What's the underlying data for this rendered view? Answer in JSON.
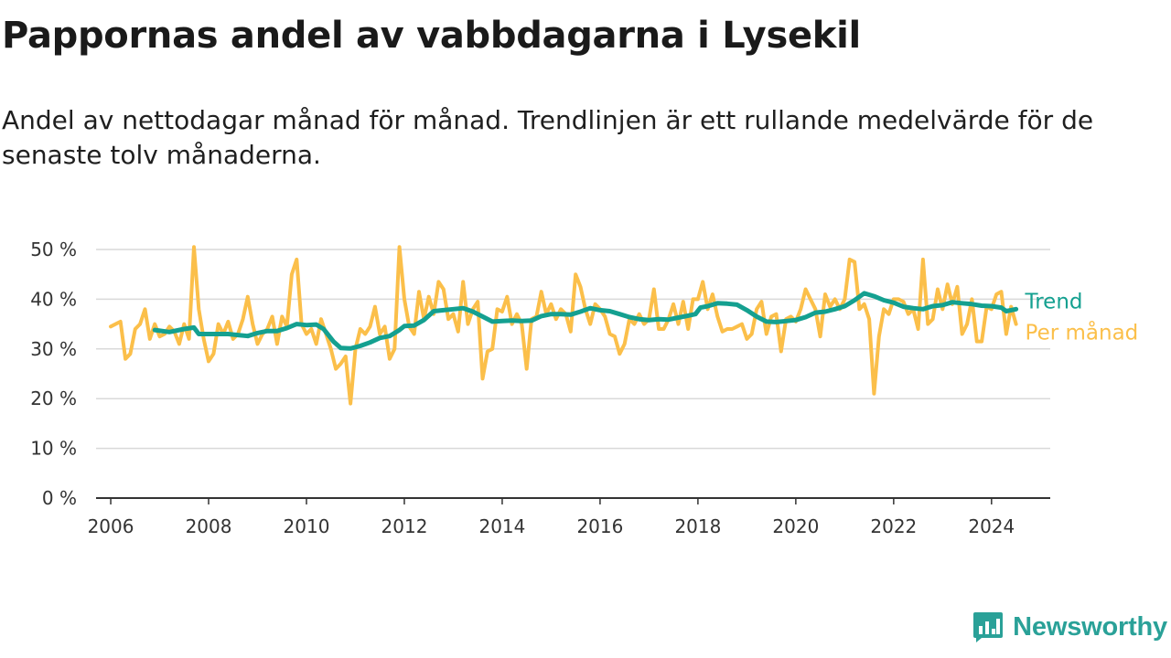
{
  "title": "Pappornas andel av vabbdagarna i Lysekil",
  "subtitle": "Andel av nettodagar månad för månad. Trendlinjen är ett rullande medelvärde för de senaste tolv månaderna.",
  "brand": {
    "name": "Newsworthy",
    "color": "#2aa198"
  },
  "chart_data": {
    "type": "line",
    "x_axis": {
      "min": 2005.7,
      "max": 2025.2,
      "ticks": [
        2006,
        2008,
        2010,
        2012,
        2014,
        2016,
        2018,
        2020,
        2022,
        2024
      ]
    },
    "y_axis": {
      "min": 0,
      "max": 50,
      "ticks": [
        0,
        10,
        20,
        30,
        40,
        50
      ],
      "tick_labels": [
        "0 %",
        "10 %",
        "20 %",
        "30 %",
        "40 %",
        "50 %"
      ]
    },
    "grid": true,
    "series": [
      {
        "name": "Per månad",
        "color": "#fbbf4a",
        "stroke_width": 4,
        "points": [
          [
            2006.0,
            34.5
          ],
          [
            2006.1,
            35.0
          ],
          [
            2006.2,
            35.5
          ],
          [
            2006.3,
            28.0
          ],
          [
            2006.4,
            29.0
          ],
          [
            2006.5,
            34.0
          ],
          [
            2006.6,
            35.0
          ],
          [
            2006.7,
            38.0
          ],
          [
            2006.8,
            32.0
          ],
          [
            2006.9,
            35.0
          ],
          [
            2007.0,
            32.5
          ],
          [
            2007.1,
            33.0
          ],
          [
            2007.2,
            34.5
          ],
          [
            2007.3,
            33.5
          ],
          [
            2007.4,
            31.0
          ],
          [
            2007.5,
            35.0
          ],
          [
            2007.6,
            32.0
          ],
          [
            2007.7,
            50.5
          ],
          [
            2007.8,
            38.0
          ],
          [
            2007.9,
            32.0
          ],
          [
            2008.0,
            27.5
          ],
          [
            2008.1,
            29.0
          ],
          [
            2008.2,
            35.0
          ],
          [
            2008.3,
            33.0
          ],
          [
            2008.4,
            35.5
          ],
          [
            2008.5,
            32.0
          ],
          [
            2008.6,
            33.0
          ],
          [
            2008.7,
            36.0
          ],
          [
            2008.8,
            40.5
          ],
          [
            2008.9,
            35.0
          ],
          [
            2009.0,
            31.0
          ],
          [
            2009.1,
            33.0
          ],
          [
            2009.2,
            34.0
          ],
          [
            2009.3,
            36.5
          ],
          [
            2009.4,
            31.0
          ],
          [
            2009.5,
            36.5
          ],
          [
            2009.6,
            34.5
          ],
          [
            2009.7,
            45.0
          ],
          [
            2009.8,
            48.0
          ],
          [
            2009.9,
            35.0
          ],
          [
            2010.0,
            33.0
          ],
          [
            2010.1,
            34.0
          ],
          [
            2010.2,
            31.0
          ],
          [
            2010.3,
            36.0
          ],
          [
            2010.4,
            33.0
          ],
          [
            2010.5,
            30.0
          ],
          [
            2010.6,
            26.0
          ],
          [
            2010.7,
            27.0
          ],
          [
            2010.8,
            28.5
          ],
          [
            2010.9,
            19.0
          ],
          [
            2011.0,
            30.0
          ],
          [
            2011.1,
            34.0
          ],
          [
            2011.2,
            33.0
          ],
          [
            2011.3,
            34.5
          ],
          [
            2011.4,
            38.5
          ],
          [
            2011.5,
            33.0
          ],
          [
            2011.6,
            34.5
          ],
          [
            2011.7,
            28.0
          ],
          [
            2011.8,
            30.0
          ],
          [
            2011.9,
            50.5
          ],
          [
            2012.0,
            40.0
          ],
          [
            2012.1,
            34.5
          ],
          [
            2012.2,
            33.0
          ],
          [
            2012.3,
            41.5
          ],
          [
            2012.4,
            36.0
          ],
          [
            2012.5,
            40.5
          ],
          [
            2012.6,
            37.0
          ],
          [
            2012.7,
            43.5
          ],
          [
            2012.8,
            42.0
          ],
          [
            2012.9,
            36.0
          ],
          [
            2013.0,
            37.0
          ],
          [
            2013.1,
            33.5
          ],
          [
            2013.2,
            43.5
          ],
          [
            2013.3,
            35.0
          ],
          [
            2013.4,
            38.0
          ],
          [
            2013.5,
            39.5
          ],
          [
            2013.6,
            24.0
          ],
          [
            2013.7,
            29.5
          ],
          [
            2013.8,
            30.0
          ],
          [
            2013.9,
            38.0
          ],
          [
            2014.0,
            37.5
          ],
          [
            2014.1,
            40.5
          ],
          [
            2014.2,
            35.0
          ],
          [
            2014.3,
            37.0
          ],
          [
            2014.4,
            35.0
          ],
          [
            2014.5,
            26.0
          ],
          [
            2014.6,
            36.0
          ],
          [
            2014.7,
            36.5
          ],
          [
            2014.8,
            41.5
          ],
          [
            2014.9,
            37.0
          ],
          [
            2015.0,
            39.0
          ],
          [
            2015.1,
            36.0
          ],
          [
            2015.2,
            38.0
          ],
          [
            2015.3,
            37.0
          ],
          [
            2015.4,
            33.5
          ],
          [
            2015.5,
            45.0
          ],
          [
            2015.6,
            42.5
          ],
          [
            2015.7,
            38.0
          ],
          [
            2015.8,
            35.0
          ],
          [
            2015.9,
            39.0
          ],
          [
            2016.0,
            38.0
          ],
          [
            2016.1,
            36.5
          ],
          [
            2016.2,
            33.0
          ],
          [
            2016.3,
            32.5
          ],
          [
            2016.4,
            29.0
          ],
          [
            2016.5,
            31.0
          ],
          [
            2016.6,
            36.0
          ],
          [
            2016.7,
            35.0
          ],
          [
            2016.8,
            37.0
          ],
          [
            2016.9,
            35.0
          ],
          [
            2017.0,
            36.0
          ],
          [
            2017.1,
            42.0
          ],
          [
            2017.2,
            34.0
          ],
          [
            2017.3,
            34.0
          ],
          [
            2017.4,
            36.0
          ],
          [
            2017.5,
            39.0
          ],
          [
            2017.6,
            35.0
          ],
          [
            2017.7,
            39.5
          ],
          [
            2017.8,
            34.0
          ],
          [
            2017.9,
            40.0
          ],
          [
            2018.0,
            40.0
          ],
          [
            2018.1,
            43.5
          ],
          [
            2018.2,
            38.0
          ],
          [
            2018.3,
            41.0
          ],
          [
            2018.4,
            36.5
          ],
          [
            2018.5,
            33.5
          ],
          [
            2018.6,
            34.0
          ],
          [
            2018.7,
            34.0
          ],
          [
            2018.8,
            34.5
          ],
          [
            2018.9,
            35.0
          ],
          [
            2019.0,
            32.0
          ],
          [
            2019.1,
            33.0
          ],
          [
            2019.2,
            38.0
          ],
          [
            2019.3,
            39.5
          ],
          [
            2019.4,
            33.0
          ],
          [
            2019.5,
            36.5
          ],
          [
            2019.6,
            37.0
          ],
          [
            2019.7,
            29.5
          ],
          [
            2019.8,
            36.0
          ],
          [
            2019.9,
            36.5
          ],
          [
            2020.0,
            35.5
          ],
          [
            2020.1,
            38.0
          ],
          [
            2020.2,
            42.0
          ],
          [
            2020.3,
            40.0
          ],
          [
            2020.4,
            38.0
          ],
          [
            2020.5,
            32.5
          ],
          [
            2020.6,
            41.0
          ],
          [
            2020.7,
            38.5
          ],
          [
            2020.8,
            40.0
          ],
          [
            2020.9,
            38.0
          ],
          [
            2021.0,
            40.0
          ],
          [
            2021.1,
            48.0
          ],
          [
            2021.2,
            47.5
          ],
          [
            2021.3,
            38.0
          ],
          [
            2021.4,
            39.0
          ],
          [
            2021.5,
            36.0
          ],
          [
            2021.6,
            21.0
          ],
          [
            2021.7,
            32.5
          ],
          [
            2021.8,
            38.0
          ],
          [
            2021.9,
            37.0
          ],
          [
            2022.0,
            40.0
          ],
          [
            2022.1,
            40.0
          ],
          [
            2022.2,
            39.5
          ],
          [
            2022.3,
            37.0
          ],
          [
            2022.4,
            38.0
          ],
          [
            2022.5,
            34.0
          ],
          [
            2022.6,
            48.0
          ],
          [
            2022.7,
            35.0
          ],
          [
            2022.8,
            36.0
          ],
          [
            2022.9,
            42.0
          ],
          [
            2023.0,
            38.0
          ],
          [
            2023.1,
            43.0
          ],
          [
            2023.2,
            39.0
          ],
          [
            2023.3,
            42.5
          ],
          [
            2023.4,
            33.0
          ],
          [
            2023.5,
            35.0
          ],
          [
            2023.6,
            40.0
          ],
          [
            2023.7,
            31.5
          ],
          [
            2023.8,
            31.5
          ],
          [
            2023.9,
            38.5
          ],
          [
            2024.0,
            38.0
          ],
          [
            2024.1,
            41.0
          ],
          [
            2024.2,
            41.5
          ],
          [
            2024.3,
            33.0
          ],
          [
            2024.4,
            38.5
          ],
          [
            2024.5,
            35.0
          ]
        ]
      },
      {
        "name": "Trend",
        "color": "#14a090",
        "stroke_width": 5,
        "points": [
          [
            2006.9,
            33.8
          ],
          [
            2007.2,
            33.4
          ],
          [
            2007.5,
            34.0
          ],
          [
            2007.7,
            34.3
          ],
          [
            2007.8,
            33.0
          ],
          [
            2008.0,
            33.0
          ],
          [
            2008.4,
            33.0
          ],
          [
            2008.6,
            32.8
          ],
          [
            2008.8,
            32.6
          ],
          [
            2009.0,
            33.2
          ],
          [
            2009.2,
            33.6
          ],
          [
            2009.4,
            33.6
          ],
          [
            2009.6,
            34.2
          ],
          [
            2009.8,
            35.0
          ],
          [
            2010.0,
            34.8
          ],
          [
            2010.2,
            34.9
          ],
          [
            2010.35,
            34.0
          ],
          [
            2010.55,
            31.5
          ],
          [
            2010.7,
            30.2
          ],
          [
            2010.9,
            30.1
          ],
          [
            2011.1,
            30.6
          ],
          [
            2011.3,
            31.3
          ],
          [
            2011.5,
            32.2
          ],
          [
            2011.7,
            32.6
          ],
          [
            2011.9,
            33.8
          ],
          [
            2012.0,
            34.6
          ],
          [
            2012.2,
            34.7
          ],
          [
            2012.4,
            35.8
          ],
          [
            2012.6,
            37.6
          ],
          [
            2012.8,
            37.8
          ],
          [
            2013.0,
            38.0
          ],
          [
            2013.2,
            38.2
          ],
          [
            2013.4,
            37.5
          ],
          [
            2013.6,
            36.5
          ],
          [
            2013.8,
            35.5
          ],
          [
            2014.0,
            35.6
          ],
          [
            2014.2,
            35.7
          ],
          [
            2014.4,
            35.6
          ],
          [
            2014.6,
            35.7
          ],
          [
            2014.8,
            36.6
          ],
          [
            2015.0,
            37.0
          ],
          [
            2015.2,
            37.0
          ],
          [
            2015.4,
            36.9
          ],
          [
            2015.6,
            37.5
          ],
          [
            2015.8,
            38.2
          ],
          [
            2016.0,
            37.8
          ],
          [
            2016.2,
            37.6
          ],
          [
            2016.4,
            37.0
          ],
          [
            2016.6,
            36.4
          ],
          [
            2016.8,
            36.0
          ],
          [
            2017.0,
            35.8
          ],
          [
            2017.2,
            36.0
          ],
          [
            2017.4,
            35.9
          ],
          [
            2017.6,
            36.3
          ],
          [
            2017.8,
            36.7
          ],
          [
            2017.95,
            37.0
          ],
          [
            2018.05,
            38.3
          ],
          [
            2018.2,
            38.6
          ],
          [
            2018.4,
            39.2
          ],
          [
            2018.6,
            39.1
          ],
          [
            2018.8,
            38.9
          ],
          [
            2019.0,
            37.8
          ],
          [
            2019.2,
            36.5
          ],
          [
            2019.4,
            35.5
          ],
          [
            2019.6,
            35.4
          ],
          [
            2019.8,
            35.6
          ],
          [
            2020.0,
            35.8
          ],
          [
            2020.2,
            36.4
          ],
          [
            2020.4,
            37.3
          ],
          [
            2020.6,
            37.5
          ],
          [
            2020.8,
            38.0
          ],
          [
            2021.0,
            38.6
          ],
          [
            2021.2,
            39.8
          ],
          [
            2021.4,
            41.2
          ],
          [
            2021.6,
            40.6
          ],
          [
            2021.8,
            39.8
          ],
          [
            2022.0,
            39.3
          ],
          [
            2022.2,
            38.5
          ],
          [
            2022.4,
            38.2
          ],
          [
            2022.6,
            38.0
          ],
          [
            2022.8,
            38.6
          ],
          [
            2023.0,
            38.8
          ],
          [
            2023.2,
            39.4
          ],
          [
            2023.4,
            39.2
          ],
          [
            2023.6,
            39.0
          ],
          [
            2023.8,
            38.7
          ],
          [
            2024.0,
            38.6
          ],
          [
            2024.2,
            38.3
          ],
          [
            2024.3,
            37.6
          ],
          [
            2024.5,
            38.0
          ]
        ]
      }
    ],
    "end_labels": [
      {
        "text": "Trend",
        "color": "#14a090"
      },
      {
        "text": "Per månad",
        "color": "#fbbf4a"
      }
    ]
  }
}
